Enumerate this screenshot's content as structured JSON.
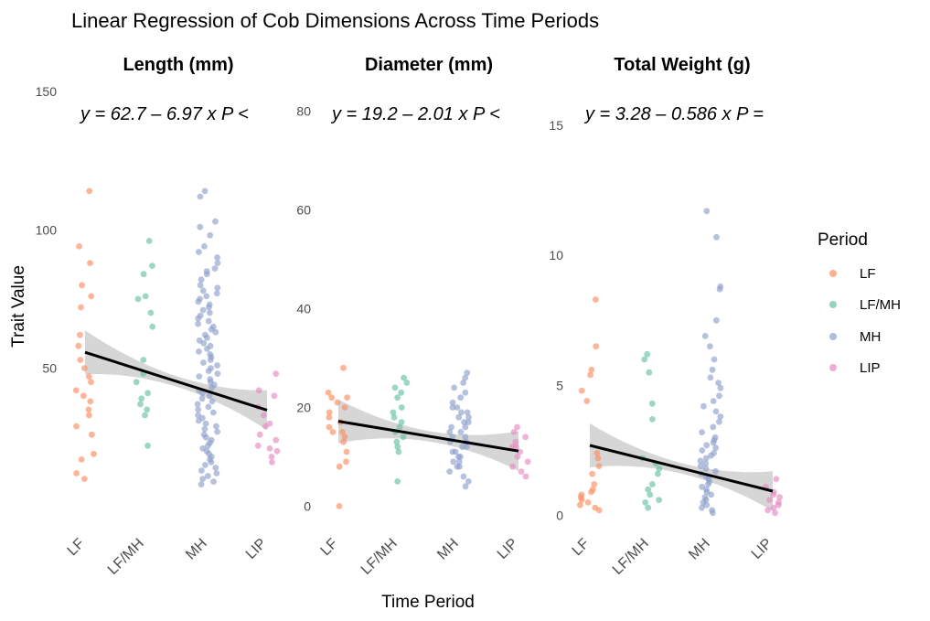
{
  "chart_data": {
    "type": "scatter",
    "title": "Linear Regression of Cob Dimensions Across Time Periods",
    "xlabel": "Time Period",
    "ylabel": "Trait Value",
    "categories": [
      "LF",
      "LF/MH",
      "MH",
      "LIP"
    ],
    "legend": {
      "title": "Period",
      "placement": "right",
      "items": [
        {
          "label": "LF",
          "color": "#fc8d62"
        },
        {
          "label": "LF/MH",
          "color": "#66c2a5"
        },
        {
          "label": "MH",
          "color": "#8da0cb"
        },
        {
          "label": "LIP",
          "color": "#e78ac3"
        }
      ]
    },
    "grid": false,
    "panels": [
      {
        "strip": "Length (mm)",
        "equation": "y = 62.7 – 6.97 x   P <",
        "ylim": [
          -7,
          150
        ],
        "yticks": [
          "50",
          "100",
          "150"
        ],
        "regression": {
          "intercept": 62.7,
          "slope": -6.97
        },
        "points": {
          "LF": [
            114,
            94,
            88,
            80,
            76,
            72,
            62,
            58,
            53,
            50,
            47,
            45,
            42,
            40,
            38,
            35,
            33,
            29,
            26,
            19,
            17,
            12,
            10
          ],
          "LF/MH": [
            96,
            87,
            84,
            76,
            75,
            70,
            65,
            53,
            48,
            45,
            41,
            39,
            37,
            35,
            33,
            22
          ],
          "MH": [
            114,
            112,
            103,
            101,
            98,
            94,
            92,
            90,
            88,
            86,
            85,
            84,
            82,
            80,
            79,
            78,
            77,
            76,
            75,
            74,
            73,
            72,
            71,
            70,
            69,
            68,
            67,
            66,
            65,
            64,
            63,
            62,
            61,
            60,
            59,
            58,
            57,
            56,
            55,
            54,
            53,
            52,
            51,
            50,
            49,
            48,
            47,
            46,
            45,
            44,
            43,
            42,
            41,
            40,
            39,
            38,
            37,
            36,
            35,
            34,
            33,
            32,
            31,
            30,
            29,
            28,
            27,
            26,
            25,
            24,
            23,
            22,
            21,
            20,
            19,
            18,
            17,
            16,
            15,
            14,
            13,
            12,
            11,
            10,
            9,
            8
          ],
          "LIP": [
            48,
            42,
            40,
            36,
            33,
            30,
            29,
            26,
            24,
            22,
            21,
            20,
            18,
            16
          ]
        }
      },
      {
        "strip": "Diameter (mm)",
        "equation": "y = 19.2 – 2.01 x   P <",
        "ylim": [
          -4,
          84
        ],
        "yticks": [
          "0",
          "20",
          "40",
          "60",
          "80"
        ],
        "regression": {
          "intercept": 19.2,
          "slope": -2.01
        },
        "points": {
          "LF": [
            28,
            23,
            22,
            22,
            21,
            20,
            19,
            18,
            17,
            16,
            15,
            15,
            14,
            13,
            11,
            9,
            8,
            0
          ],
          "LF/MH": [
            26,
            25,
            24,
            23,
            22,
            20,
            19,
            18,
            17,
            16,
            15,
            14,
            13,
            12,
            11,
            5
          ],
          "MH": [
            27,
            26,
            25,
            24,
            23,
            22,
            21,
            20,
            20,
            19,
            19,
            18,
            18,
            17,
            17,
            16,
            16,
            15,
            15,
            14,
            14,
            13,
            13,
            12,
            12,
            11,
            11,
            10,
            10,
            9,
            9,
            8,
            8,
            7,
            6,
            5,
            4
          ],
          "LIP": [
            16,
            15,
            14,
            13,
            12,
            12,
            11,
            10,
            9,
            8,
            7,
            6
          ]
        }
      },
      {
        "strip": "Total Weight (g)",
        "equation": "y = 3.28 – 0.586 x   P =",
        "ylim": [
          -0.4,
          16.3
        ],
        "yticks": [
          "0",
          "5",
          "10",
          "15"
        ],
        "regression": {
          "intercept": 3.28,
          "slope": -0.586
        },
        "points": {
          "LF": [
            8.3,
            6.5,
            5.6,
            5.4,
            4.8,
            4.4,
            2.4,
            2.2,
            1.9,
            1.6,
            1.2,
            1.0,
            0.9,
            0.8,
            0.7,
            0.6,
            0.5,
            0.4,
            0.3,
            0.2
          ],
          "LF/MH": [
            6.2,
            6.0,
            5.5,
            4.3,
            3.7,
            2.2,
            2.0,
            1.8,
            1.6,
            1.2,
            1.0,
            0.8,
            0.6,
            0.5,
            0.3
          ],
          "MH": [
            11.7,
            10.7,
            8.8,
            8.7,
            7.5,
            6.9,
            6.5,
            6.0,
            5.6,
            5.3,
            5.1,
            4.9,
            4.6,
            4.4,
            4.2,
            4.0,
            3.8,
            3.6,
            3.4,
            3.2,
            3.0,
            2.9,
            2.8,
            2.7,
            2.6,
            2.5,
            2.4,
            2.3,
            2.2,
            2.1,
            2.0,
            1.9,
            1.8,
            1.7,
            1.6,
            1.5,
            1.4,
            1.3,
            1.2,
            1.1,
            1.0,
            0.9,
            0.8,
            0.7,
            0.6,
            0.5,
            0.4,
            0.3,
            0.2,
            0.1
          ],
          "LIP": [
            1.4,
            1.1,
            0.9,
            0.8,
            0.7,
            0.6,
            0.5,
            0.4,
            0.3,
            0.2,
            0.1
          ]
        }
      }
    ]
  }
}
